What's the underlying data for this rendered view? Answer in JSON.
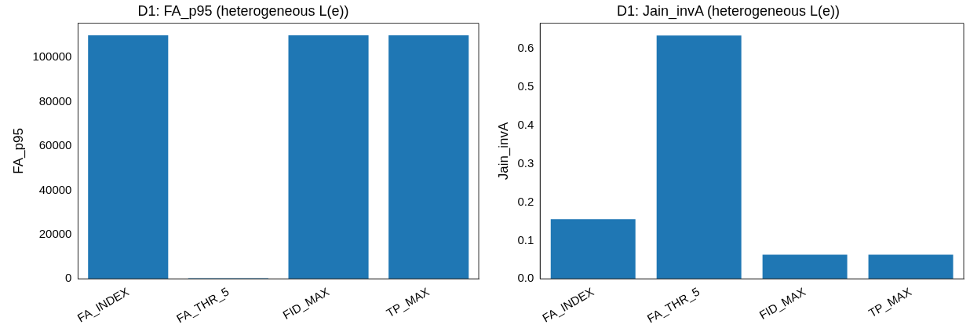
{
  "chart_data": [
    {
      "type": "bar",
      "title": "D1: FA_p95 (heterogeneous L(e))",
      "ylabel": "FA_p95",
      "categories": [
        "FA_INDEX",
        "FA_THR_5",
        "FID_MAX",
        "TP_MAX"
      ],
      "values": [
        110000,
        300,
        110000,
        110000
      ],
      "color": "#1f77b4",
      "ylim": [
        0,
        115500
      ],
      "yticks": [
        0,
        20000,
        40000,
        60000,
        80000,
        100000
      ],
      "grid": false,
      "legend": false
    },
    {
      "type": "bar",
      "title": "D1: Jain_invA (heterogeneous L(e))",
      "ylabel": "Jain_invA",
      "categories": [
        "FA_INDEX",
        "FA_THR_5",
        "FID_MAX",
        "TP_MAX"
      ],
      "values": [
        0.156,
        0.635,
        0.063,
        0.063
      ],
      "color": "#1f77b4",
      "ylim": [
        0,
        0.667
      ],
      "yticks": [
        {
          "value": 0,
          "label": "0.0"
        },
        0.1,
        0.2,
        0.3,
        0.4,
        0.5,
        0.6
      ],
      "grid": false,
      "legend": false
    }
  ]
}
